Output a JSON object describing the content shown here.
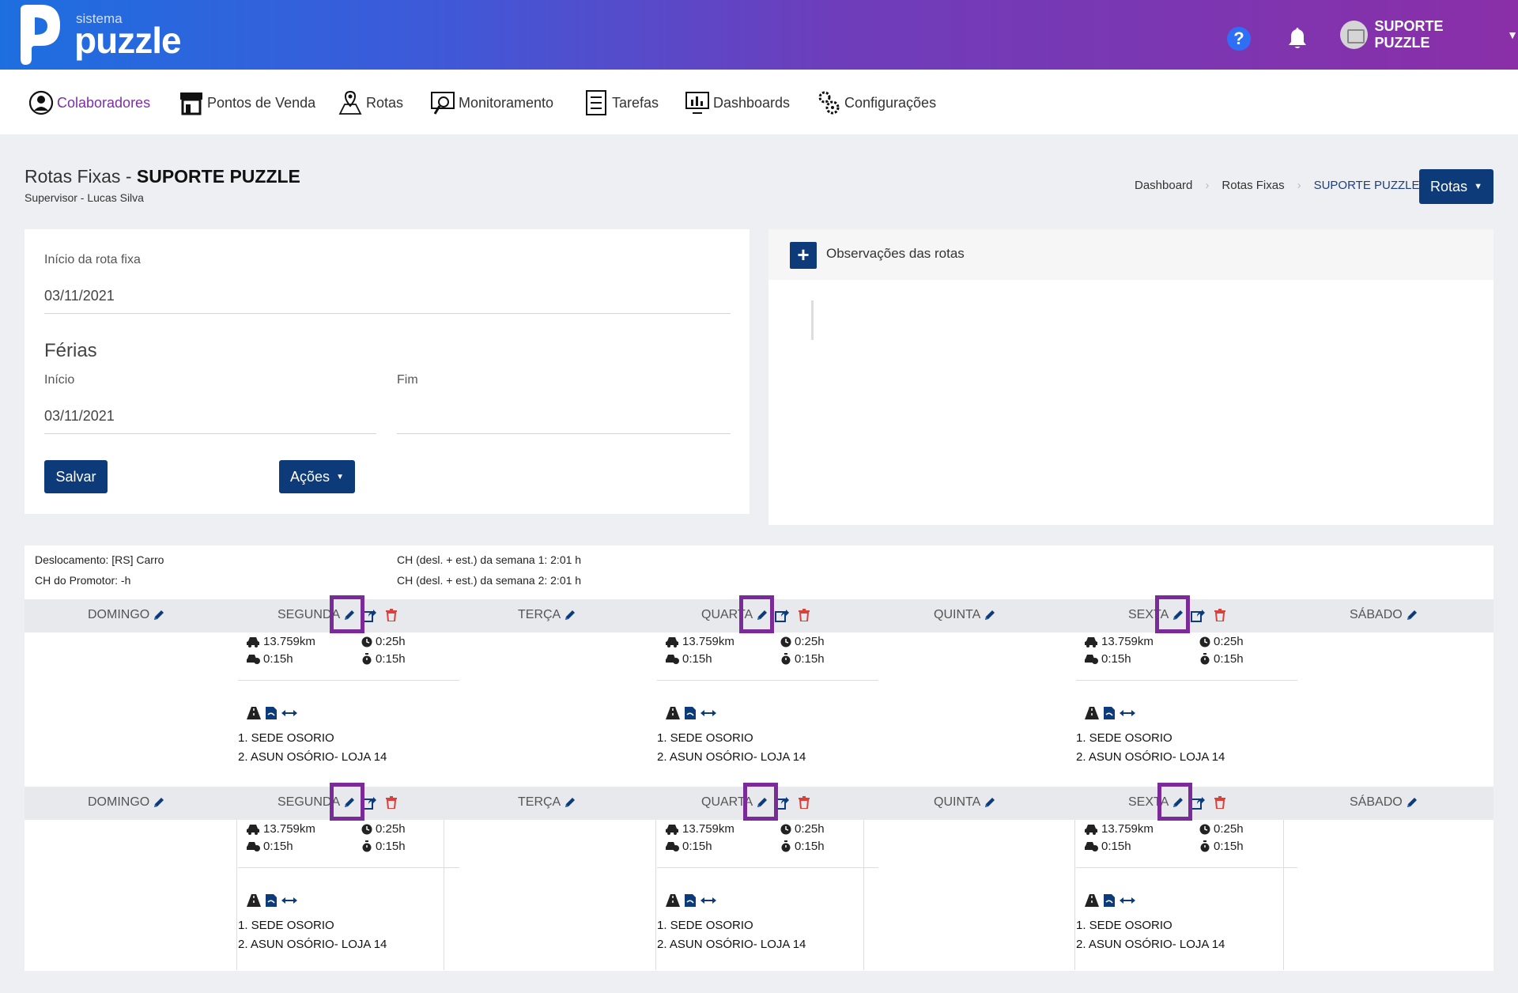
{
  "logo": {
    "sistema": "sistema",
    "puzzle": "puzzle"
  },
  "header": {
    "help_icon": "question-circle-icon",
    "user_name": "SUPORTE PUZZLE"
  },
  "nav": [
    {
      "label": "Colaboradores",
      "icon": "user-circle-icon"
    },
    {
      "label": "Pontos de Venda",
      "icon": "store-icon"
    },
    {
      "label": "Rotas",
      "icon": "map-pin-icon"
    },
    {
      "label": "Monitoramento",
      "icon": "monitor-search-icon"
    },
    {
      "label": "Tarefas",
      "icon": "checklist-icon"
    },
    {
      "label": "Dashboards",
      "icon": "dashboard-icon"
    },
    {
      "label": "Configurações",
      "icon": "gears-icon"
    }
  ],
  "page": {
    "title_prefix": "Rotas Fixas - ",
    "title_name": "SUPORTE PUZZLE",
    "subtitle": "Supervisor - Lucas Silva",
    "breadcrumb": [
      "Dashboard",
      "Rotas Fixas",
      "SUPORTE PUZZLE"
    ],
    "rotas_button": "Rotas"
  },
  "form": {
    "inicio_rota_label": "Início da rota fixa",
    "inicio_rota_value": "03/11/2021",
    "ferias_title": "Férias",
    "ferias_inicio_label": "Início",
    "ferias_inicio_value": "03/11/2021",
    "ferias_fim_label": "Fim",
    "ferias_fim_value": "",
    "salvar": "Salvar",
    "acoes": "Ações"
  },
  "obs": {
    "title": "Observações das rotas"
  },
  "routes_info": {
    "deslocamento": "Deslocamento: [RS] Carro",
    "ch_promotor": "CH do Promotor: -h",
    "ch_semana1": "CH (desl. + est.) da semana 1: 2:01 h",
    "ch_semana2": "CH (desl. + est.) da semana 2: 2:01 h"
  },
  "days": [
    "DOMINGO",
    "SEGUNDA",
    "TERÇA",
    "QUARTA",
    "QUINTA",
    "SEXTA",
    "SÁBADO"
  ],
  "route": {
    "distance": "13.759km",
    "time1": "0:25h",
    "time2": "0:15h",
    "time3": "0:15h",
    "stops": [
      "1. SEDE OSORIO",
      "2. ASUN OSÓRIO- LOJA 14"
    ]
  }
}
